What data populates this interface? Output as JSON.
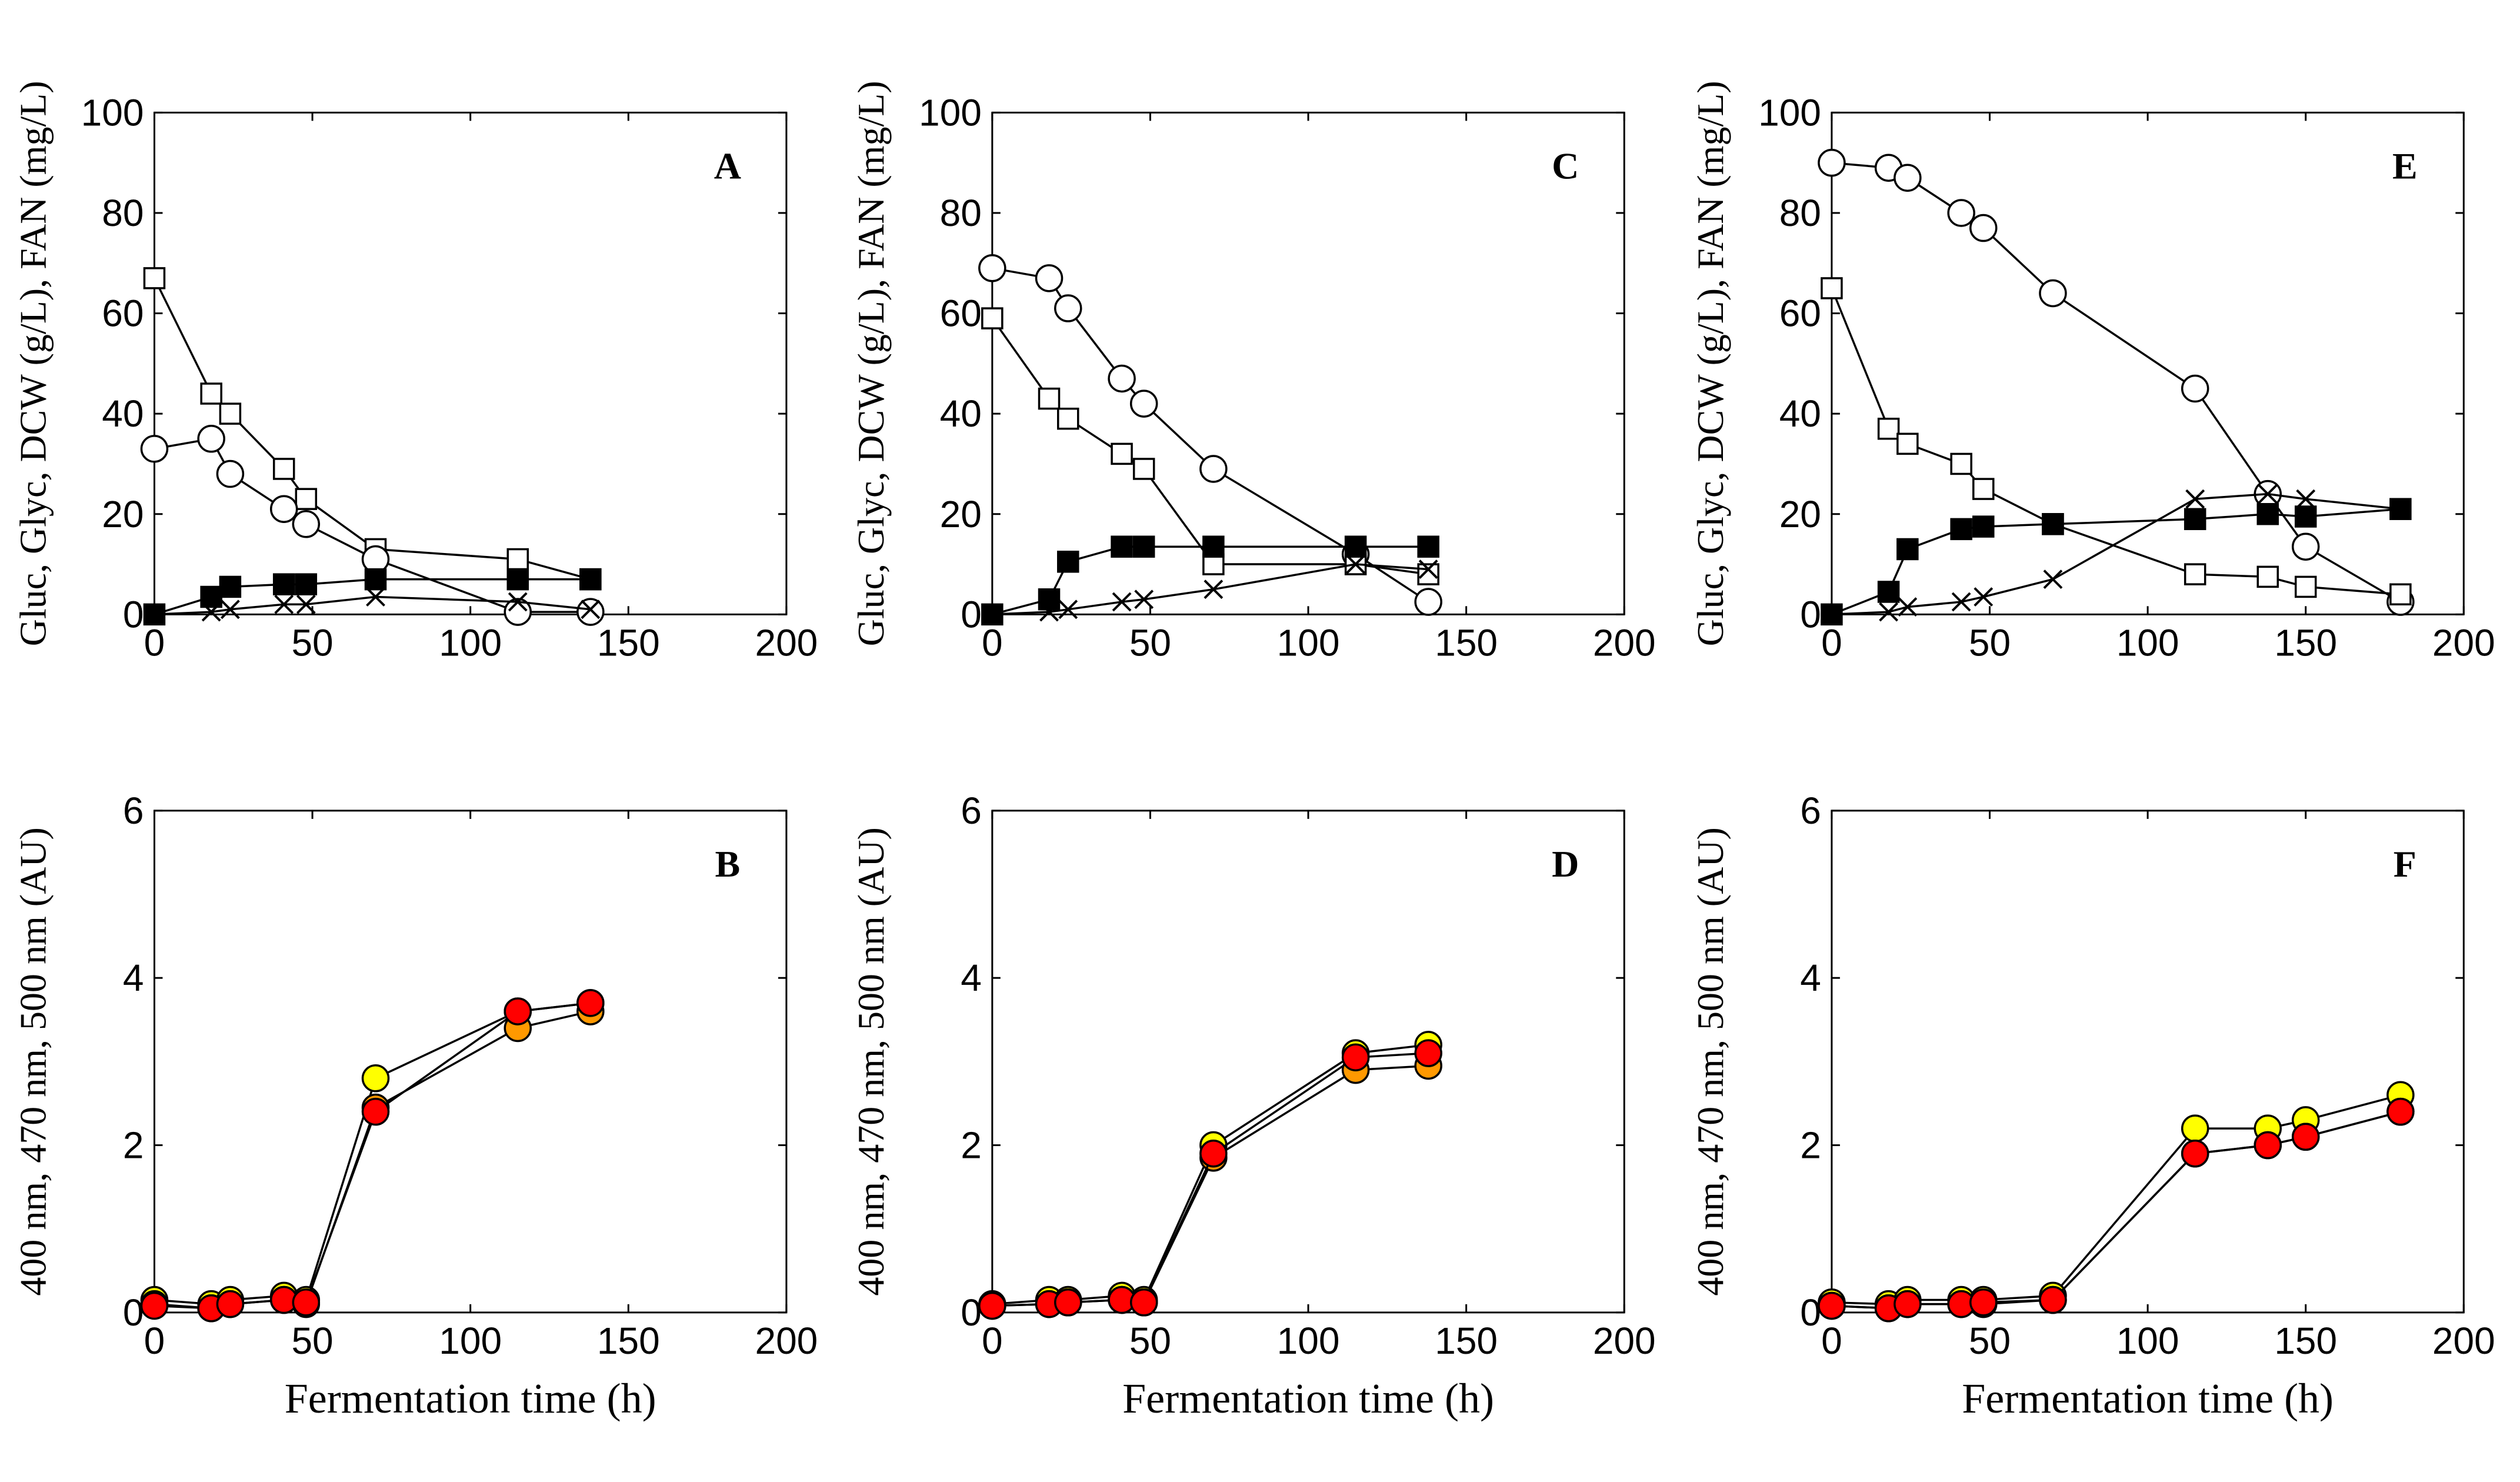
{
  "chart_data": [
    {
      "type": "line",
      "panel": "A",
      "ylabel": "Gluc, Glyc, DCW (g/L), FAN (mg/L)",
      "xlabel": "",
      "xlim": [
        0,
        200
      ],
      "ylim": [
        0,
        100
      ],
      "xticks": [
        0,
        50,
        100,
        150,
        200
      ],
      "yticks": [
        0,
        20,
        40,
        60,
        80,
        100
      ],
      "series": [
        {
          "marker": "open-square",
          "points": [
            [
              0,
              67
            ],
            [
              18,
              44
            ],
            [
              24,
              40
            ],
            [
              41,
              29
            ],
            [
              48,
              23
            ],
            [
              70,
              13
            ],
            [
              115,
              11
            ],
            [
              138,
              7
            ]
          ]
        },
        {
          "marker": "open-circle",
          "points": [
            [
              0,
              33
            ],
            [
              18,
              35
            ],
            [
              24,
              28
            ],
            [
              41,
              21
            ],
            [
              48,
              18
            ],
            [
              70,
              11
            ],
            [
              115,
              0.5
            ],
            [
              138,
              0.5
            ]
          ]
        },
        {
          "marker": "filled-square",
          "points": [
            [
              0,
              0
            ],
            [
              18,
              3.5
            ],
            [
              24,
              5.5
            ],
            [
              41,
              6
            ],
            [
              48,
              6
            ],
            [
              70,
              7
            ],
            [
              115,
              7
            ],
            [
              138,
              7
            ]
          ]
        },
        {
          "marker": "cross",
          "points": [
            [
              0,
              0
            ],
            [
              18,
              0.5
            ],
            [
              24,
              1
            ],
            [
              41,
              2
            ],
            [
              48,
              2
            ],
            [
              70,
              3.5
            ],
            [
              115,
              2.5
            ],
            [
              138,
              1
            ]
          ]
        }
      ]
    },
    {
      "type": "line",
      "panel": "C",
      "ylabel": "Gluc, Glyc, DCW (g/L), FAN (mg/L)",
      "xlabel": "",
      "xlim": [
        0,
        200
      ],
      "ylim": [
        0,
        100
      ],
      "xticks": [
        0,
        50,
        100,
        150,
        200
      ],
      "yticks": [
        0,
        20,
        40,
        60,
        80,
        100
      ],
      "series": [
        {
          "marker": "open-circle",
          "points": [
            [
              0,
              69
            ],
            [
              18,
              67
            ],
            [
              24,
              61
            ],
            [
              41,
              47
            ],
            [
              48,
              42
            ],
            [
              70,
              29
            ],
            [
              115,
              12
            ],
            [
              138,
              2.5
            ]
          ]
        },
        {
          "marker": "open-square",
          "points": [
            [
              0,
              59
            ],
            [
              18,
              43
            ],
            [
              24,
              39
            ],
            [
              41,
              32
            ],
            [
              48,
              29
            ],
            [
              70,
              10
            ],
            [
              115,
              10
            ],
            [
              138,
              8
            ]
          ]
        },
        {
          "marker": "filled-square",
          "points": [
            [
              0,
              0
            ],
            [
              18,
              3
            ],
            [
              24,
              10.5
            ],
            [
              41,
              13.5
            ],
            [
              48,
              13.5
            ],
            [
              70,
              13.5
            ],
            [
              115,
              13.5
            ],
            [
              138,
              13.5
            ]
          ]
        },
        {
          "marker": "cross",
          "points": [
            [
              0,
              0
            ],
            [
              18,
              0.5
            ],
            [
              24,
              1
            ],
            [
              41,
              2.5
            ],
            [
              48,
              3
            ],
            [
              70,
              5
            ],
            [
              115,
              10
            ],
            [
              138,
              9
            ]
          ]
        }
      ]
    },
    {
      "type": "line",
      "panel": "E",
      "ylabel": "Gluc, Glyc, DCW (g/L), FAN (mg/L)",
      "xlabel": "",
      "xlim": [
        0,
        200
      ],
      "ylim": [
        0,
        100
      ],
      "xticks": [
        0,
        50,
        100,
        150,
        200
      ],
      "yticks": [
        0,
        20,
        40,
        60,
        80,
        100
      ],
      "series": [
        {
          "marker": "open-circle",
          "points": [
            [
              0,
              90
            ],
            [
              18,
              89
            ],
            [
              24,
              87
            ],
            [
              41,
              80
            ],
            [
              48,
              77
            ],
            [
              70,
              64
            ],
            [
              115,
              45
            ],
            [
              138,
              24
            ],
            [
              150,
              13.5
            ],
            [
              180,
              2.5
            ]
          ]
        },
        {
          "marker": "open-square",
          "points": [
            [
              0,
              65
            ],
            [
              18,
              37
            ],
            [
              24,
              34
            ],
            [
              41,
              30
            ],
            [
              48,
              25
            ],
            [
              70,
              18
            ],
            [
              115,
              8
            ],
            [
              138,
              7.5
            ],
            [
              150,
              5.5
            ],
            [
              180,
              4
            ]
          ]
        },
        {
          "marker": "filled-square",
          "points": [
            [
              0,
              0
            ],
            [
              18,
              4.5
            ],
            [
              24,
              13
            ],
            [
              41,
              17
            ],
            [
              48,
              17.5
            ],
            [
              70,
              18
            ],
            [
              115,
              19
            ],
            [
              138,
              20
            ],
            [
              150,
              19.5
            ],
            [
              180,
              21
            ]
          ]
        },
        {
          "marker": "cross",
          "points": [
            [
              0,
              0
            ],
            [
              18,
              0.5
            ],
            [
              24,
              1.5
            ],
            [
              41,
              2.5
            ],
            [
              48,
              3.5
            ],
            [
              70,
              7
            ],
            [
              115,
              23
            ],
            [
              138,
              24
            ],
            [
              150,
              23
            ],
            [
              180,
              21
            ]
          ]
        }
      ]
    },
    {
      "type": "line",
      "panel": "B",
      "ylabel": "400 nm, 470 nm, 500 nm (AU)",
      "xlabel": "Fermentation time (h)",
      "xlim": [
        0,
        200
      ],
      "ylim": [
        0,
        6
      ],
      "xticks": [
        0,
        50,
        100,
        150,
        200
      ],
      "yticks": [
        0,
        2,
        4,
        6
      ],
      "series": [
        {
          "marker": "yellow-circle",
          "color": "#ffff00",
          "points": [
            [
              0,
              0.15
            ],
            [
              18,
              0.1
            ],
            [
              24,
              0.15
            ],
            [
              41,
              0.2
            ],
            [
              48,
              0.15
            ],
            [
              70,
              2.8
            ],
            [
              115,
              3.6
            ],
            [
              138,
              3.7
            ]
          ]
        },
        {
          "marker": "orange-circle",
          "color": "#ff9900",
          "points": [
            [
              0,
              0.1
            ],
            [
              18,
              0.05
            ],
            [
              24,
              0.1
            ],
            [
              41,
              0.15
            ],
            [
              48,
              0.1
            ],
            [
              70,
              2.45
            ],
            [
              115,
              3.4
            ],
            [
              138,
              3.6
            ]
          ]
        },
        {
          "marker": "red-circle",
          "color": "#ff0000",
          "points": [
            [
              0,
              0.08
            ],
            [
              18,
              0.05
            ],
            [
              24,
              0.1
            ],
            [
              41,
              0.15
            ],
            [
              48,
              0.12
            ],
            [
              70,
              2.4
            ],
            [
              115,
              3.6
            ],
            [
              138,
              3.7
            ]
          ]
        }
      ]
    },
    {
      "type": "line",
      "panel": "D",
      "ylabel": "400 nm, 470 nm, 500 nm (AU)",
      "xlabel": "Fermentation time (h)",
      "xlim": [
        0,
        200
      ],
      "ylim": [
        0,
        6
      ],
      "xticks": [
        0,
        50,
        100,
        150,
        200
      ],
      "yticks": [
        0,
        2,
        4,
        6
      ],
      "series": [
        {
          "marker": "yellow-circle",
          "color": "#ffff00",
          "points": [
            [
              0,
              0.1
            ],
            [
              18,
              0.15
            ],
            [
              24,
              0.15
            ],
            [
              41,
              0.2
            ],
            [
              48,
              0.15
            ],
            [
              70,
              2.0
            ],
            [
              115,
              3.1
            ],
            [
              138,
              3.2
            ]
          ]
        },
        {
          "marker": "orange-circle",
          "color": "#ff9900",
          "points": [
            [
              0,
              0.08
            ],
            [
              18,
              0.1
            ],
            [
              24,
              0.12
            ],
            [
              41,
              0.15
            ],
            [
              48,
              0.12
            ],
            [
              70,
              1.85
            ],
            [
              115,
              2.9
            ],
            [
              138,
              2.95
            ]
          ]
        },
        {
          "marker": "red-circle",
          "color": "#ff0000",
          "points": [
            [
              0,
              0.08
            ],
            [
              18,
              0.1
            ],
            [
              24,
              0.12
            ],
            [
              41,
              0.15
            ],
            [
              48,
              0.12
            ],
            [
              70,
              1.9
            ],
            [
              115,
              3.05
            ],
            [
              138,
              3.1
            ]
          ]
        }
      ]
    },
    {
      "type": "line",
      "panel": "F",
      "ylabel": "400 nm, 470 nm, 500 nm (AU)",
      "xlabel": "Fermentation time (h)",
      "xlim": [
        0,
        200
      ],
      "ylim": [
        0,
        6
      ],
      "xticks": [
        0,
        50,
        100,
        150,
        200
      ],
      "yticks": [
        0,
        2,
        4,
        6
      ],
      "series": [
        {
          "marker": "yellow-circle",
          "color": "#ffff00",
          "points": [
            [
              0,
              0.12
            ],
            [
              18,
              0.1
            ],
            [
              24,
              0.15
            ],
            [
              41,
              0.15
            ],
            [
              48,
              0.15
            ],
            [
              70,
              0.2
            ],
            [
              115,
              2.2
            ],
            [
              138,
              2.2
            ],
            [
              150,
              2.3
            ],
            [
              180,
              2.6
            ]
          ]
        },
        {
          "marker": "orange-circle",
          "color": "#ff9900",
          "points": [
            [
              0,
              0.08
            ],
            [
              18,
              0.05
            ],
            [
              24,
              0.1
            ],
            [
              41,
              0.1
            ],
            [
              48,
              0.1
            ],
            [
              70,
              0.15
            ],
            [
              115,
              1.9
            ],
            [
              138,
              2.0
            ],
            [
              150,
              2.1
            ],
            [
              180,
              2.4
            ]
          ]
        },
        {
          "marker": "red-circle",
          "color": "#ff0000",
          "points": [
            [
              0,
              0.08
            ],
            [
              18,
              0.05
            ],
            [
              24,
              0.1
            ],
            [
              41,
              0.1
            ],
            [
              48,
              0.12
            ],
            [
              70,
              0.15
            ],
            [
              115,
              1.9
            ],
            [
              138,
              2.0
            ],
            [
              150,
              2.1
            ],
            [
              180,
              2.4
            ]
          ]
        }
      ]
    }
  ]
}
